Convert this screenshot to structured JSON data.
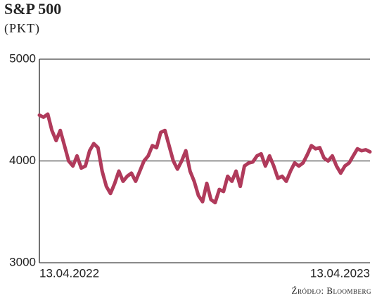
{
  "chart_data": {
    "type": "line",
    "title": "S&P 500",
    "subtitle": "(PKT)",
    "source": "Źródło: Bloomberg",
    "categories": [
      "13.04.2022",
      null,
      null,
      null,
      null,
      null,
      null,
      null,
      null,
      null,
      null,
      null,
      null,
      null,
      null,
      null,
      null,
      null,
      null,
      null,
      null,
      null,
      null,
      null,
      null,
      null,
      null,
      null,
      null,
      null,
      null,
      null,
      null,
      null,
      null,
      null,
      null,
      null,
      null,
      null,
      null,
      null,
      null,
      null,
      null,
      null,
      null,
      null,
      null,
      null,
      null,
      null,
      null,
      null,
      null,
      null,
      null,
      null,
      null,
      null,
      null,
      null,
      null,
      null,
      null,
      null,
      null,
      null,
      null,
      null,
      null,
      null,
      null,
      null,
      null,
      null,
      null,
      null,
      null,
      "13.04.2023"
    ],
    "series": [
      {
        "name": "S&P 500",
        "color": "#b03a5b",
        "values": [
          4450,
          4430,
          4460,
          4300,
          4200,
          4300,
          4150,
          4000,
          3950,
          4050,
          3930,
          3950,
          4100,
          4170,
          4130,
          3900,
          3750,
          3680,
          3780,
          3900,
          3800,
          3850,
          3880,
          3800,
          3900,
          4000,
          4050,
          4150,
          4130,
          4280,
          4300,
          4150,
          4000,
          3920,
          4000,
          4100,
          3900,
          3800,
          3660,
          3600,
          3780,
          3620,
          3590,
          3720,
          3700,
          3850,
          3800,
          3900,
          3750,
          3950,
          3980,
          3990,
          4050,
          4070,
          3950,
          4050,
          3950,
          3830,
          3850,
          3800,
          3900,
          3980,
          3950,
          3980,
          4060,
          4150,
          4120,
          4130,
          4030,
          4000,
          4050,
          3950,
          3880,
          3950,
          3980,
          4050,
          4120,
          4100,
          4110,
          4090
        ]
      }
    ],
    "ylim": [
      3000,
      5000
    ],
    "yticks": [
      3000,
      4000,
      5000
    ],
    "grid": true
  }
}
